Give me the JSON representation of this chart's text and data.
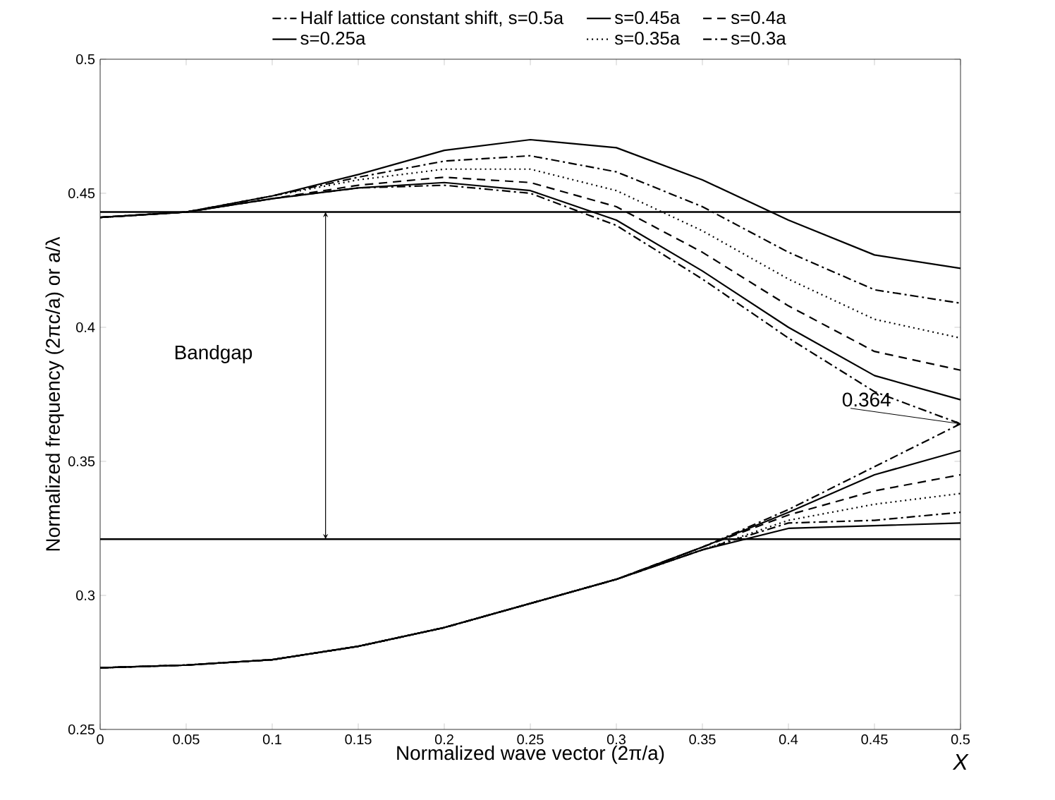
{
  "chart_data": {
    "type": "line",
    "xlabel": "Normalized wave vector (2π/a)",
    "ylabel": "Normalized frequency (2πc/a) or a/λ",
    "x": [
      0,
      0.05,
      0.1,
      0.15,
      0.2,
      0.25,
      0.3,
      0.35,
      0.4,
      0.45,
      0.5
    ],
    "series": [
      {
        "name": "Half lattice constant shift,  s=0.5a",
        "color": "#000000",
        "line_style": "dashdot",
        "values": [
          0.441,
          0.443,
          0.448,
          0.452,
          0.453,
          0.45,
          0.438,
          0.418,
          0.396,
          0.376,
          0.364
        ]
      },
      {
        "color": "#000000",
        "line_style": "dashdot",
        "values": [
          0.273,
          0.274,
          0.276,
          0.281,
          0.288,
          0.297,
          0.306,
          0.318,
          0.332,
          0.348,
          0.364
        ]
      },
      {
        "name": "s=0.45a",
        "color": "#000000",
        "line_style": "solid",
        "values": [
          0.441,
          0.443,
          0.448,
          0.452,
          0.454,
          0.451,
          0.44,
          0.421,
          0.4,
          0.382,
          0.373
        ]
      },
      {
        "color": "#000000",
        "line_style": "solid",
        "values": [
          0.273,
          0.274,
          0.276,
          0.281,
          0.288,
          0.297,
          0.306,
          0.318,
          0.331,
          0.345,
          0.354
        ]
      },
      {
        "name": "s=0.4a",
        "color": "#000000",
        "line_style": "dashed",
        "values": [
          0.441,
          0.443,
          0.448,
          0.453,
          0.456,
          0.454,
          0.445,
          0.428,
          0.408,
          0.391,
          0.384
        ]
      },
      {
        "color": "#000000",
        "line_style": "dashed",
        "values": [
          0.273,
          0.274,
          0.276,
          0.281,
          0.288,
          0.297,
          0.306,
          0.318,
          0.33,
          0.339,
          0.345
        ]
      },
      {
        "name": "s=0.25a",
        "color": "#000000",
        "line_style": "solid",
        "values": [
          0.441,
          0.443,
          0.449,
          0.457,
          0.466,
          0.47,
          0.467,
          0.455,
          0.44,
          0.427,
          0.422
        ]
      },
      {
        "color": "#000000",
        "line_style": "solid",
        "values": [
          0.273,
          0.274,
          0.276,
          0.281,
          0.288,
          0.297,
          0.306,
          0.317,
          0.325,
          0.326,
          0.327
        ]
      },
      {
        "name": "s=0.35a",
        "color": "#000000",
        "line_style": "dotted",
        "values": [
          0.441,
          0.443,
          0.449,
          0.455,
          0.459,
          0.459,
          0.451,
          0.436,
          0.418,
          0.403,
          0.396
        ]
      },
      {
        "color": "#000000",
        "line_style": "dotted",
        "values": [
          0.273,
          0.274,
          0.276,
          0.281,
          0.288,
          0.297,
          0.306,
          0.317,
          0.328,
          0.334,
          0.338
        ]
      },
      {
        "name": "s=0.3a",
        "color": "#000000",
        "line_style": "dashdot",
        "values": [
          0.441,
          0.443,
          0.449,
          0.456,
          0.462,
          0.464,
          0.458,
          0.445,
          0.428,
          0.414,
          0.409
        ]
      },
      {
        "color": "#000000",
        "line_style": "dashdot",
        "values": [
          0.273,
          0.274,
          0.276,
          0.281,
          0.288,
          0.297,
          0.306,
          0.317,
          0.327,
          0.328,
          0.331
        ]
      }
    ],
    "ref_lines": [
      {
        "axis": "y",
        "value": 0.443
      },
      {
        "axis": "y",
        "value": 0.321
      }
    ],
    "annotations": [
      "Bandgap",
      {
        "text": "0.364",
        "x": 0.5,
        "y": 0.364
      },
      "X"
    ],
    "xlim": [
      0,
      0.5
    ],
    "ylim": [
      0.25,
      0.5
    ],
    "xticks": [
      0,
      0.05,
      0.1,
      0.15,
      0.2,
      0.25,
      0.3,
      0.35,
      0.4,
      0.45,
      0.5
    ],
    "yticks": [
      0.25,
      0.3,
      0.35,
      0.4,
      0.45,
      0.5
    ],
    "legend": "top",
    "grid": false
  }
}
